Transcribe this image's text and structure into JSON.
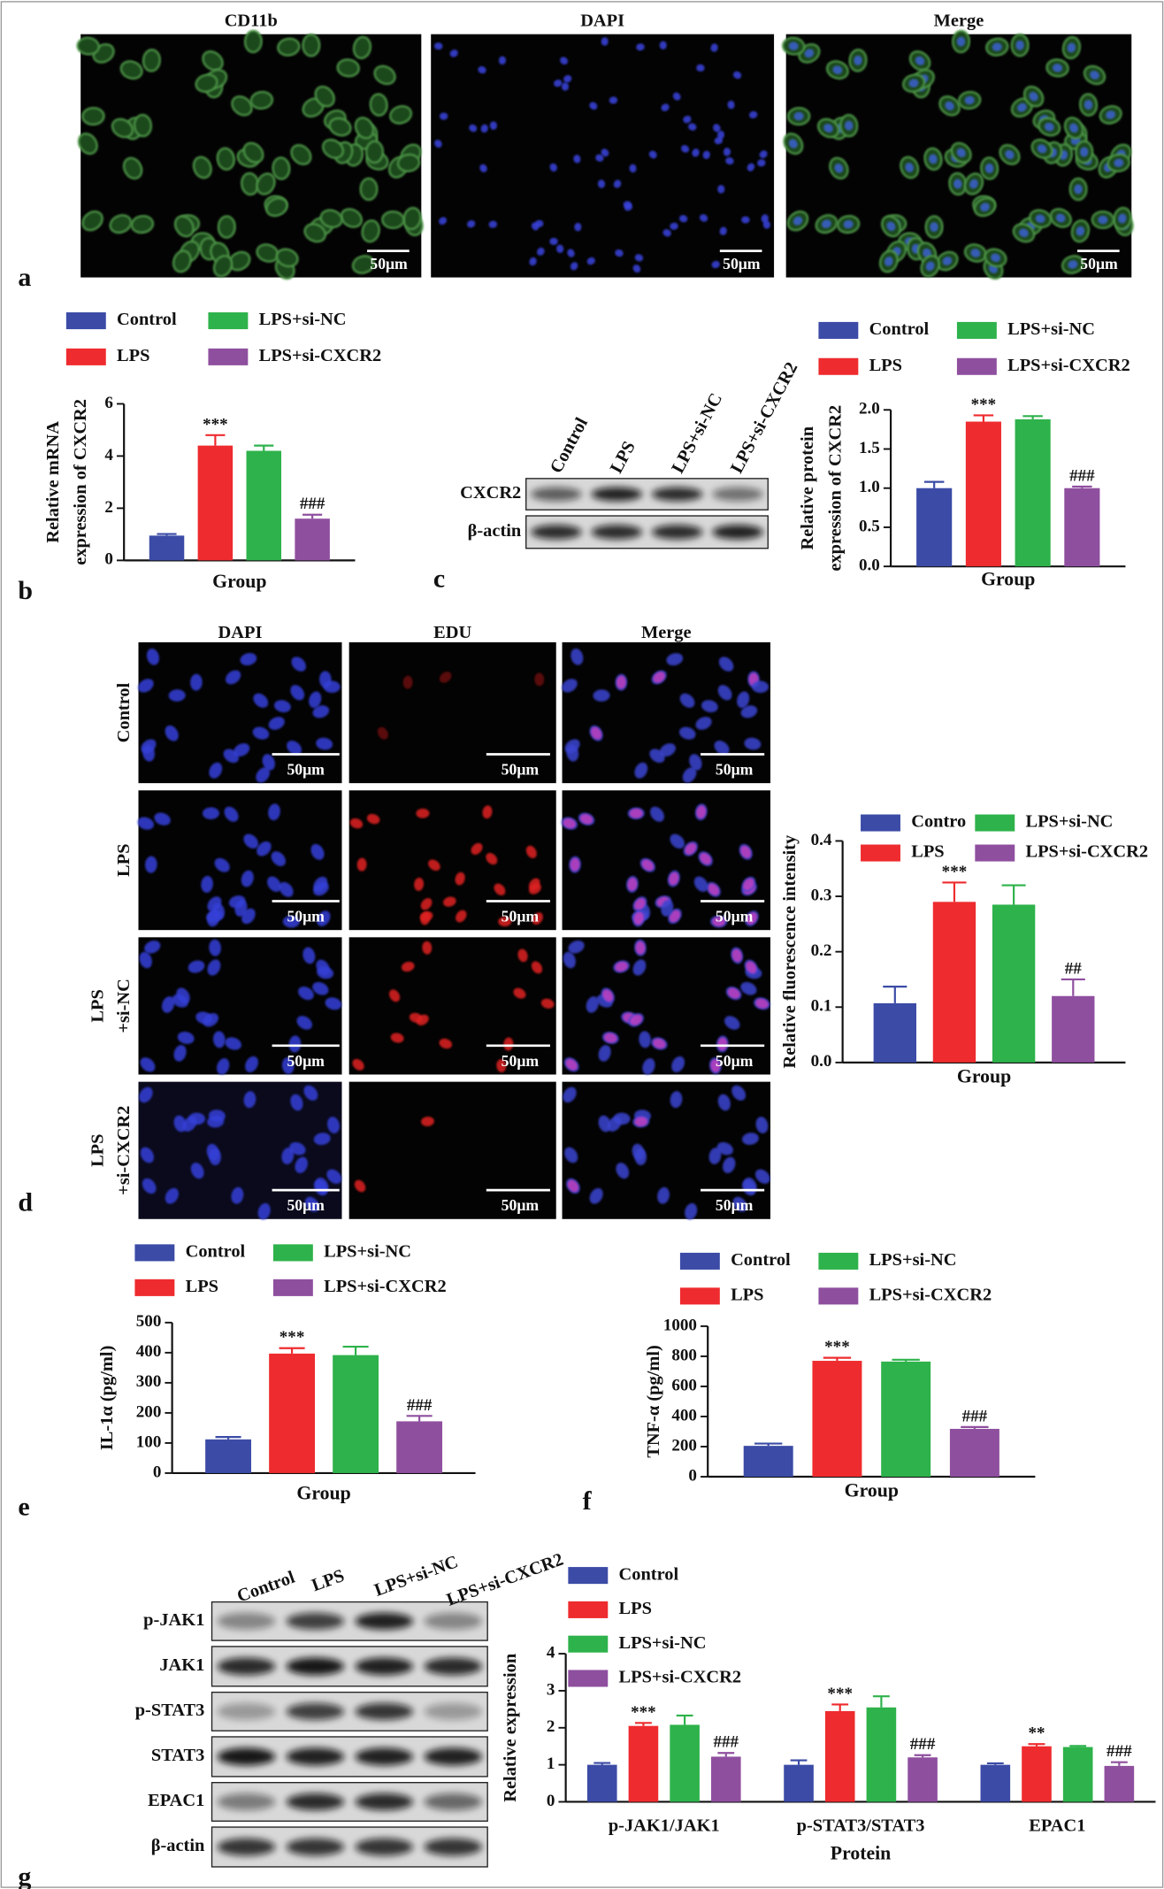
{
  "chart_data": [
    {
      "type": "bar",
      "ylabel": [
        "Relative mRNA",
        "expression of CXCR2"
      ],
      "xlabel": "Group",
      "ylim": [
        0,
        6
      ],
      "yticks": [
        0,
        2,
        4,
        6
      ],
      "series": [
        {
          "name": "Control",
          "color": "#3b4ba6",
          "values": [
            0.95
          ],
          "errors": [
            0.06
          ],
          "annotations": [
            null
          ]
        },
        {
          "name": "LPS",
          "color": "#ee2b2e",
          "values": [
            4.4
          ],
          "errors": [
            0.4
          ],
          "annotations": [
            "***"
          ]
        },
        {
          "name": "LPS+si-NC",
          "color": "#2eb24b",
          "values": [
            4.2
          ],
          "errors": [
            0.2
          ],
          "annotations": [
            null
          ]
        },
        {
          "name": "LPS+si-CXCR2",
          "color": "#8f4f9f",
          "values": [
            1.6
          ],
          "errors": [
            0.15
          ],
          "annotations": [
            "###"
          ]
        }
      ]
    },
    {
      "type": "bar",
      "ylabel": [
        "Relative protein",
        "expression of CXCR2"
      ],
      "xlabel": "Group",
      "ylim": [
        0,
        2
      ],
      "yticks": [
        {
          "value": 0,
          "label": "0.0"
        },
        0.5,
        {
          "value": 1,
          "label": "1.0"
        },
        1.5,
        {
          "value": 2,
          "label": "2.0"
        }
      ],
      "series": [
        {
          "name": "Control",
          "color": "#3b4ba6",
          "values": [
            1.0
          ],
          "errors": [
            0.08
          ],
          "annotations": [
            null
          ]
        },
        {
          "name": "LPS",
          "color": "#ee2b2e",
          "values": [
            1.85
          ],
          "errors": [
            0.08
          ],
          "annotations": [
            "***"
          ]
        },
        {
          "name": "LPS+si-NC",
          "color": "#2eb24b",
          "values": [
            1.88
          ],
          "errors": [
            0.04
          ],
          "annotations": [
            null
          ]
        },
        {
          "name": "LPS+si-CXCR2",
          "color": "#8f4f9f",
          "values": [
            1.0
          ],
          "errors": [
            0.02
          ],
          "annotations": [
            "###"
          ]
        }
      ]
    },
    {
      "type": "bar",
      "ylabel": [
        "Relative fluorescence intensity"
      ],
      "xlabel": "Group",
      "ylim": [
        0,
        0.4
      ],
      "yticks": [
        {
          "value": 0,
          "label": "0.0"
        },
        0.1,
        0.2,
        0.3,
        0.4
      ],
      "series": [
        {
          "name": "Contro",
          "color": "#3b4ba6",
          "values": [
            0.107
          ],
          "errors": [
            0.03
          ],
          "annotations": [
            null
          ]
        },
        {
          "name": "LPS",
          "color": "#ee2b2e",
          "values": [
            0.29
          ],
          "errors": [
            0.035
          ],
          "annotations": [
            "***"
          ]
        },
        {
          "name": "LPS+si-NC",
          "color": "#2eb24b",
          "values": [
            0.285
          ],
          "errors": [
            0.035
          ],
          "annotations": [
            null
          ]
        },
        {
          "name": "LPS+si-CXCR2",
          "color": "#8f4f9f",
          "values": [
            0.12
          ],
          "errors": [
            0.03
          ],
          "annotations": [
            "##"
          ]
        }
      ]
    },
    {
      "type": "bar",
      "ylabel": [
        "IL-1α (pg/ml)"
      ],
      "xlabel": "Group",
      "ylim": [
        0,
        500
      ],
      "yticks": [
        0,
        100,
        200,
        300,
        400,
        500
      ],
      "series": [
        {
          "name": "Control",
          "color": "#3b4ba6",
          "values": [
            112
          ],
          "errors": [
            8
          ],
          "annotations": [
            null
          ]
        },
        {
          "name": "LPS",
          "color": "#ee2b2e",
          "values": [
            397
          ],
          "errors": [
            18
          ],
          "annotations": [
            "***"
          ]
        },
        {
          "name": "LPS+si-NC",
          "color": "#2eb24b",
          "values": [
            392
          ],
          "errors": [
            28
          ],
          "annotations": [
            null
          ]
        },
        {
          "name": "LPS+si-CXCR2",
          "color": "#8f4f9f",
          "values": [
            172
          ],
          "errors": [
            18
          ],
          "annotations": [
            "###"
          ]
        }
      ]
    },
    {
      "type": "bar",
      "ylabel": [
        "TNF-α (pg/ml)"
      ],
      "xlabel": "Group",
      "ylim": [
        0,
        1000
      ],
      "yticks": [
        0,
        200,
        400,
        600,
        800,
        1000
      ],
      "series": [
        {
          "name": "Control",
          "color": "#3b4ba6",
          "values": [
            205
          ],
          "errors": [
            15
          ],
          "annotations": [
            null
          ]
        },
        {
          "name": "LPS",
          "color": "#ee2b2e",
          "values": [
            770
          ],
          "errors": [
            20
          ],
          "annotations": [
            "***"
          ]
        },
        {
          "name": "LPS+si-NC",
          "color": "#2eb24b",
          "values": [
            765
          ],
          "errors": [
            12
          ],
          "annotations": [
            null
          ]
        },
        {
          "name": "LPS+si-CXCR2",
          "color": "#8f4f9f",
          "values": [
            318
          ],
          "errors": [
            12
          ],
          "annotations": [
            "###"
          ]
        }
      ]
    },
    {
      "type": "bar",
      "ylabel": [
        "Relative expression"
      ],
      "xlabel": "Protein",
      "categories": [
        "p-JAK1/JAK1",
        "p-STAT3/STAT3",
        "EPAC1"
      ],
      "ylim": [
        0,
        4
      ],
      "yticks": [
        0,
        1,
        2,
        3,
        4
      ],
      "series": [
        {
          "name": "Control",
          "color": "#3b4ba6",
          "values": [
            1.0,
            1.0,
            1.0
          ],
          "errors": [
            0.05,
            0.12,
            0.04
          ],
          "annotations": [
            null,
            null,
            null
          ]
        },
        {
          "name": "LPS",
          "color": "#ee2b2e",
          "values": [
            2.05,
            2.45,
            1.5
          ],
          "errors": [
            0.08,
            0.18,
            0.06
          ],
          "annotations": [
            "***",
            "***",
            "**"
          ]
        },
        {
          "name": "LPS+si-NC",
          "color": "#2eb24b",
          "values": [
            2.08,
            2.55,
            1.48
          ],
          "errors": [
            0.25,
            0.3,
            0.03
          ],
          "annotations": [
            null,
            null,
            null
          ]
        },
        {
          "name": "LPS+si-CXCR2",
          "color": "#8f4f9f",
          "values": [
            1.22,
            1.2,
            0.97
          ],
          "errors": [
            0.1,
            0.06,
            0.1
          ],
          "annotations": [
            "###",
            "###",
            "###"
          ]
        }
      ]
    }
  ],
  "panel_letters": [
    "a",
    "b",
    "c",
    "d",
    "e",
    "f",
    "g"
  ],
  "panel_a": {
    "titles": [
      "CD11b",
      "DAPI",
      "Merge"
    ],
    "scale_bar": "50μm"
  },
  "blot_c": {
    "lanes": [
      "Control",
      "LPS",
      "LPS+si-NC",
      "LPS+si-CXCR2"
    ],
    "rows": [
      "CXCR2",
      "β-actin"
    ]
  },
  "panel_d": {
    "columns": [
      "DAPI",
      "EDU",
      "Merge"
    ],
    "rows": [
      [
        "Control"
      ],
      [
        "LPS"
      ],
      [
        "LPS",
        "+si-NC"
      ],
      [
        "LPS",
        "+si-CXCR2"
      ]
    ],
    "scale_bar": "50μm"
  },
  "blot_g": {
    "lanes": [
      "Control",
      "LPS",
      "LPS+si-NC",
      "LPS+si-CXCR2"
    ],
    "rows": [
      "p-JAK1",
      "JAK1",
      "p-STAT3",
      "STAT3",
      "EPAC1",
      "β-actin"
    ]
  }
}
